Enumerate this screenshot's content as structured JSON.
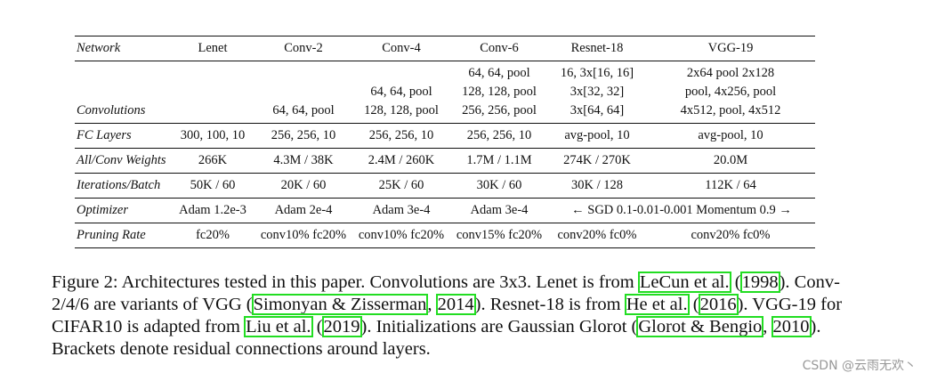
{
  "table": {
    "header": {
      "label": "Network",
      "columns": [
        "Lenet",
        "Conv-2",
        "Conv-4",
        "Conv-6",
        "Resnet-18",
        "VGG-19"
      ]
    },
    "rows": [
      {
        "label": "Convolutions",
        "cells": [
          "",
          "64, 64, pool",
          "64, 64, pool\n128, 128, pool",
          "64, 64, pool\n128, 128, pool\n256, 256, pool",
          "16, 3x[16, 16]\n3x[32, 32]\n3x[64, 64]",
          "2x64 pool 2x128\npool, 4x256, pool\n4x512, pool, 4x512"
        ]
      },
      {
        "label": "FC Layers",
        "cells": [
          "300, 100, 10",
          "256, 256, 10",
          "256, 256, 10",
          "256, 256, 10",
          "avg-pool, 10",
          "avg-pool, 10"
        ]
      },
      {
        "label": "All/Conv Weights",
        "cells": [
          "266K",
          "4.3M / 38K",
          "2.4M / 260K",
          "1.7M / 1.1M",
          "274K / 270K",
          "20.0M"
        ]
      },
      {
        "label": "Iterations/Batch",
        "cells": [
          "50K / 60",
          "20K / 60",
          "25K / 60",
          "30K / 60",
          "30K / 128",
          "112K / 64"
        ]
      },
      {
        "label": "Optimizer",
        "cells": [
          "Adam 1.2e-3",
          "Adam 2e-4",
          "Adam 3e-4",
          "Adam 3e-4"
        ],
        "span_cell": "← SGD 0.1-0.01-0.001 Momentum 0.9 →"
      },
      {
        "label": "Pruning Rate",
        "cells": [
          "fc20%",
          "conv10% fc20%",
          "conv10% fc20%",
          "conv15% fc20%",
          "conv20% fc0%",
          "conv20% fc0%"
        ]
      }
    ]
  },
  "caption": {
    "t1": "Figure 2: Architectures tested in this paper. Convolutions are 3x3. Lenet is from ",
    "c1": "LeCun et al.",
    "t2": " (",
    "c2": "1998",
    "t3": "). Conv-2/4/6 are variants of VGG (",
    "c3": "Simonyan & Zisserman",
    "t4": ", ",
    "c4": "2014",
    "t5": "). Resnet-18 is from ",
    "c5": "He et al.",
    "t6": " (",
    "c6": "2016",
    "t7": "). VGG-19 for CIFAR10 is adapted from ",
    "c7": "Liu et al.",
    "t8": " (",
    "c8": "2019",
    "t9": "). Initializations are Gaussian Glorot (",
    "c9": "Glorot & Bengio",
    "t10": ", ",
    "c10": "2010",
    "t11": "). Brackets denote residual connections around layers."
  },
  "watermark": "CSDN @云雨无欢丶"
}
